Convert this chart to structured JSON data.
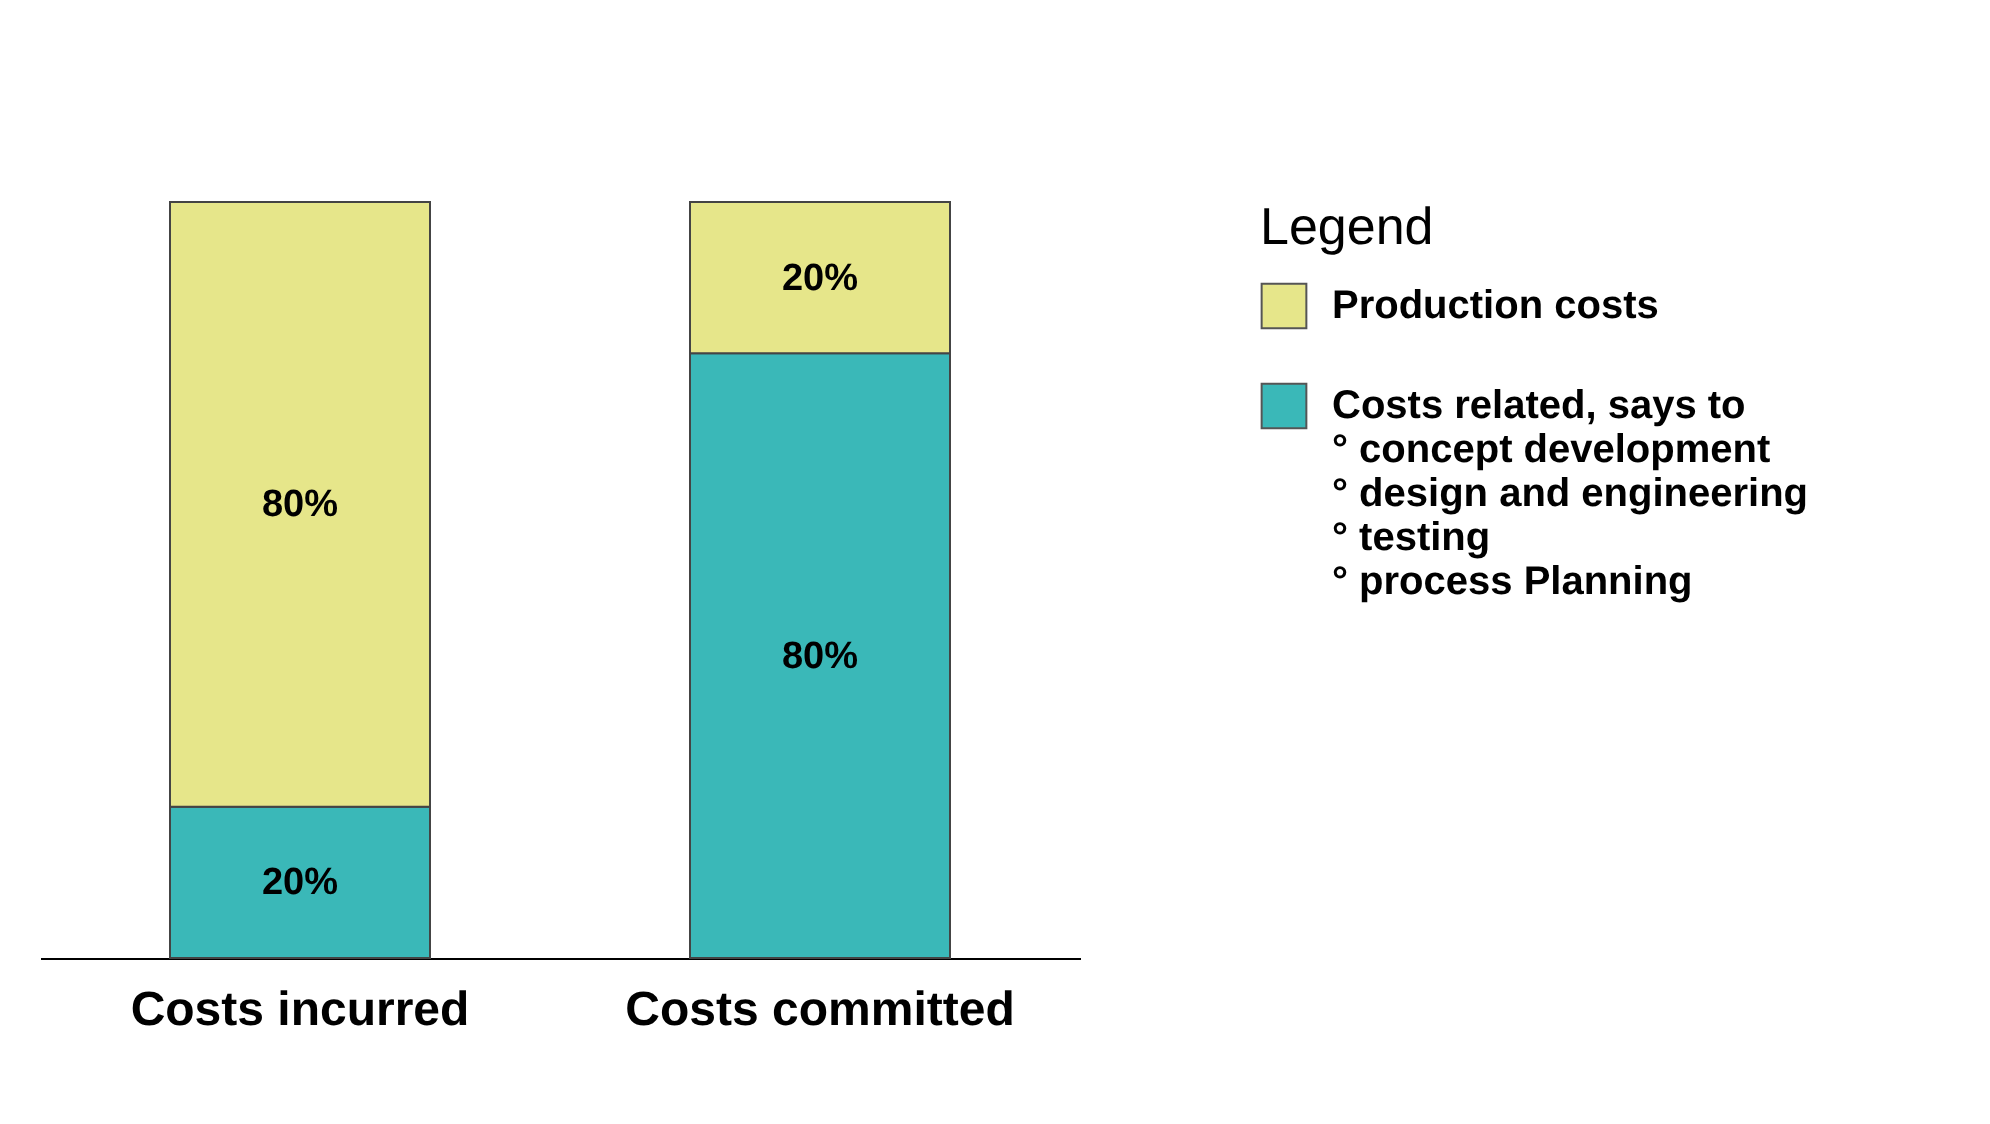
{
  "chart_data": {
    "type": "bar",
    "stacked": true,
    "legend": "right",
    "legend_title": "Legend",
    "categories": [
      "Costs incurred",
      "Costs committed"
    ],
    "series": [
      {
        "name": "Costs related, says to\n° concept development\n° design and engineering\n° testing\n° process Planning",
        "color": "#3ab8b8",
        "values": [
          20,
          80
        ],
        "value_labels": [
          "20%",
          "80%"
        ]
      },
      {
        "name": "Production costs",
        "color": "#e6e68a",
        "values": [
          80,
          20
        ],
        "value_labels": [
          "80%",
          "20%"
        ]
      }
    ]
  }
}
